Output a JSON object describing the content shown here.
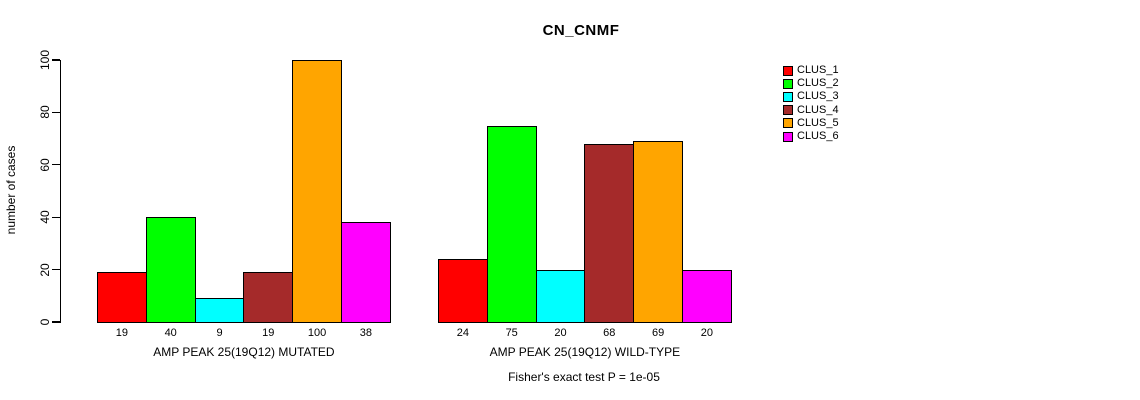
{
  "chart_data": {
    "type": "bar",
    "title": "CN_CNMF",
    "ylabel": "number of cases",
    "ylim": [
      0,
      100
    ],
    "yticks": [
      0,
      20,
      40,
      60,
      80,
      100
    ],
    "grid": false,
    "legend_position": "right-outside",
    "clusters": [
      {
        "label": "CLUS_1",
        "color": "#ff0000"
      },
      {
        "label": "CLUS_2",
        "color": "#00ff00"
      },
      {
        "label": "CLUS_3",
        "color": "#00ffff"
      },
      {
        "label": "CLUS_4",
        "color": "#a52a2a"
      },
      {
        "label": "CLUS_5",
        "color": "#ffa500"
      },
      {
        "label": "CLUS_6",
        "color": "#ff00ff"
      }
    ],
    "groups": [
      {
        "label": "AMP PEAK 25(19Q12) MUTATED",
        "values": [
          19,
          40,
          9,
          19,
          100,
          38
        ]
      },
      {
        "label": "AMP PEAK 25(19Q12) WILD-TYPE",
        "values": [
          24,
          75,
          20,
          68,
          69,
          20
        ]
      }
    ],
    "annotation": "Fisher's exact test P = 1e-05",
    "axis_color": "#000000",
    "background": "#ffffff"
  }
}
